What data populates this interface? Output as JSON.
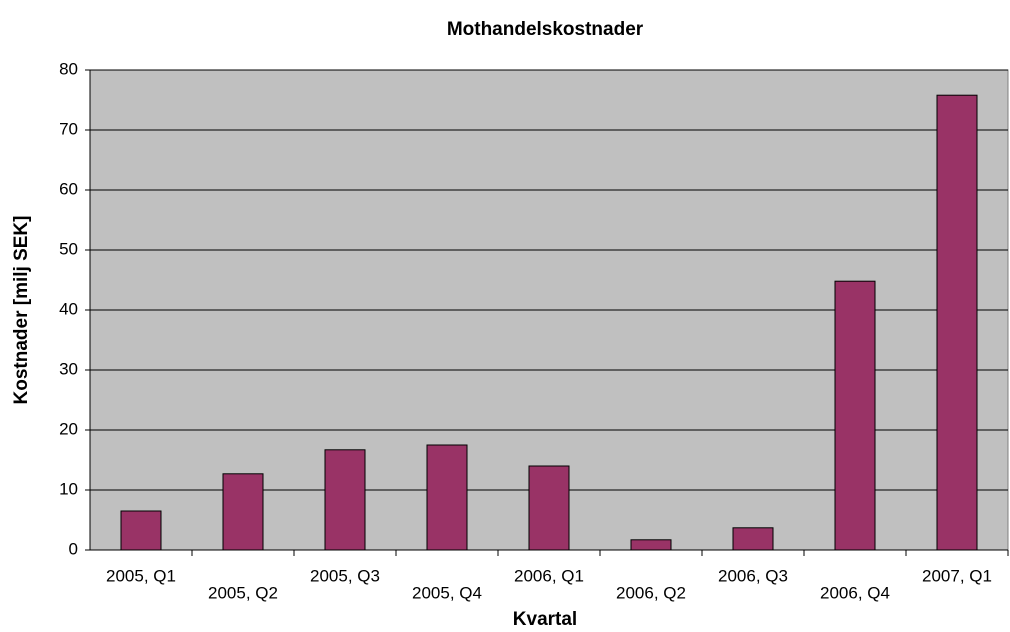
{
  "chart_data": {
    "type": "bar",
    "title": "Mothandelskostnader",
    "x_label": "Kvartal",
    "y_label": "Kostnader [milj SEK]",
    "categories": [
      "2005, Q1",
      "2005, Q2",
      "2005, Q3",
      "2005, Q4",
      "2006, Q1",
      "2006, Q2",
      "2006, Q3",
      "2006, Q4",
      "2007, Q1"
    ],
    "values": [
      6.5,
      12.7,
      16.7,
      17.5,
      14,
      1.7,
      3.7,
      44.8,
      75.8
    ],
    "color": "#993366",
    "ylim": [
      0,
      80
    ],
    "yticks": [
      0,
      10,
      20,
      30,
      40,
      50,
      60,
      70,
      80
    ],
    "grid": true
  }
}
